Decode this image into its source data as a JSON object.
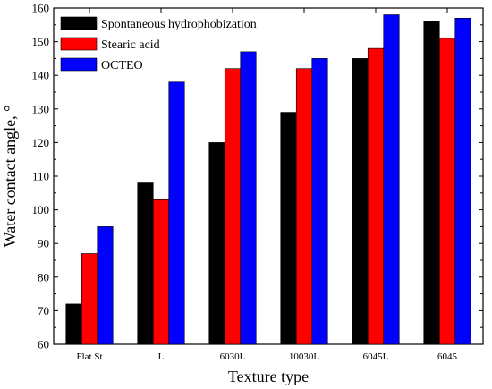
{
  "chart_data": {
    "type": "bar",
    "xlabel": "Texture type",
    "ylabel": "Water contact angle, °",
    "ylim": [
      60,
      160
    ],
    "yticks": [
      60,
      70,
      80,
      90,
      100,
      110,
      120,
      130,
      140,
      150,
      160
    ],
    "categories": [
      "Flat St",
      "L",
      "6030L",
      "10030L",
      "6045L",
      "6045"
    ],
    "series": [
      {
        "name": "Spontaneous hydrophobization",
        "color": "#000000",
        "values": [
          72,
          108,
          120,
          129,
          145,
          156
        ]
      },
      {
        "name": "Stearic acid",
        "color": "#ff0000",
        "values": [
          87,
          103,
          142,
          142,
          148,
          151
        ]
      },
      {
        "name": "OCTEO",
        "color": "#0000ff",
        "values": [
          95,
          138,
          147,
          145,
          158,
          157
        ]
      }
    ],
    "legend": {
      "position": "top-left"
    },
    "grid": false
  }
}
